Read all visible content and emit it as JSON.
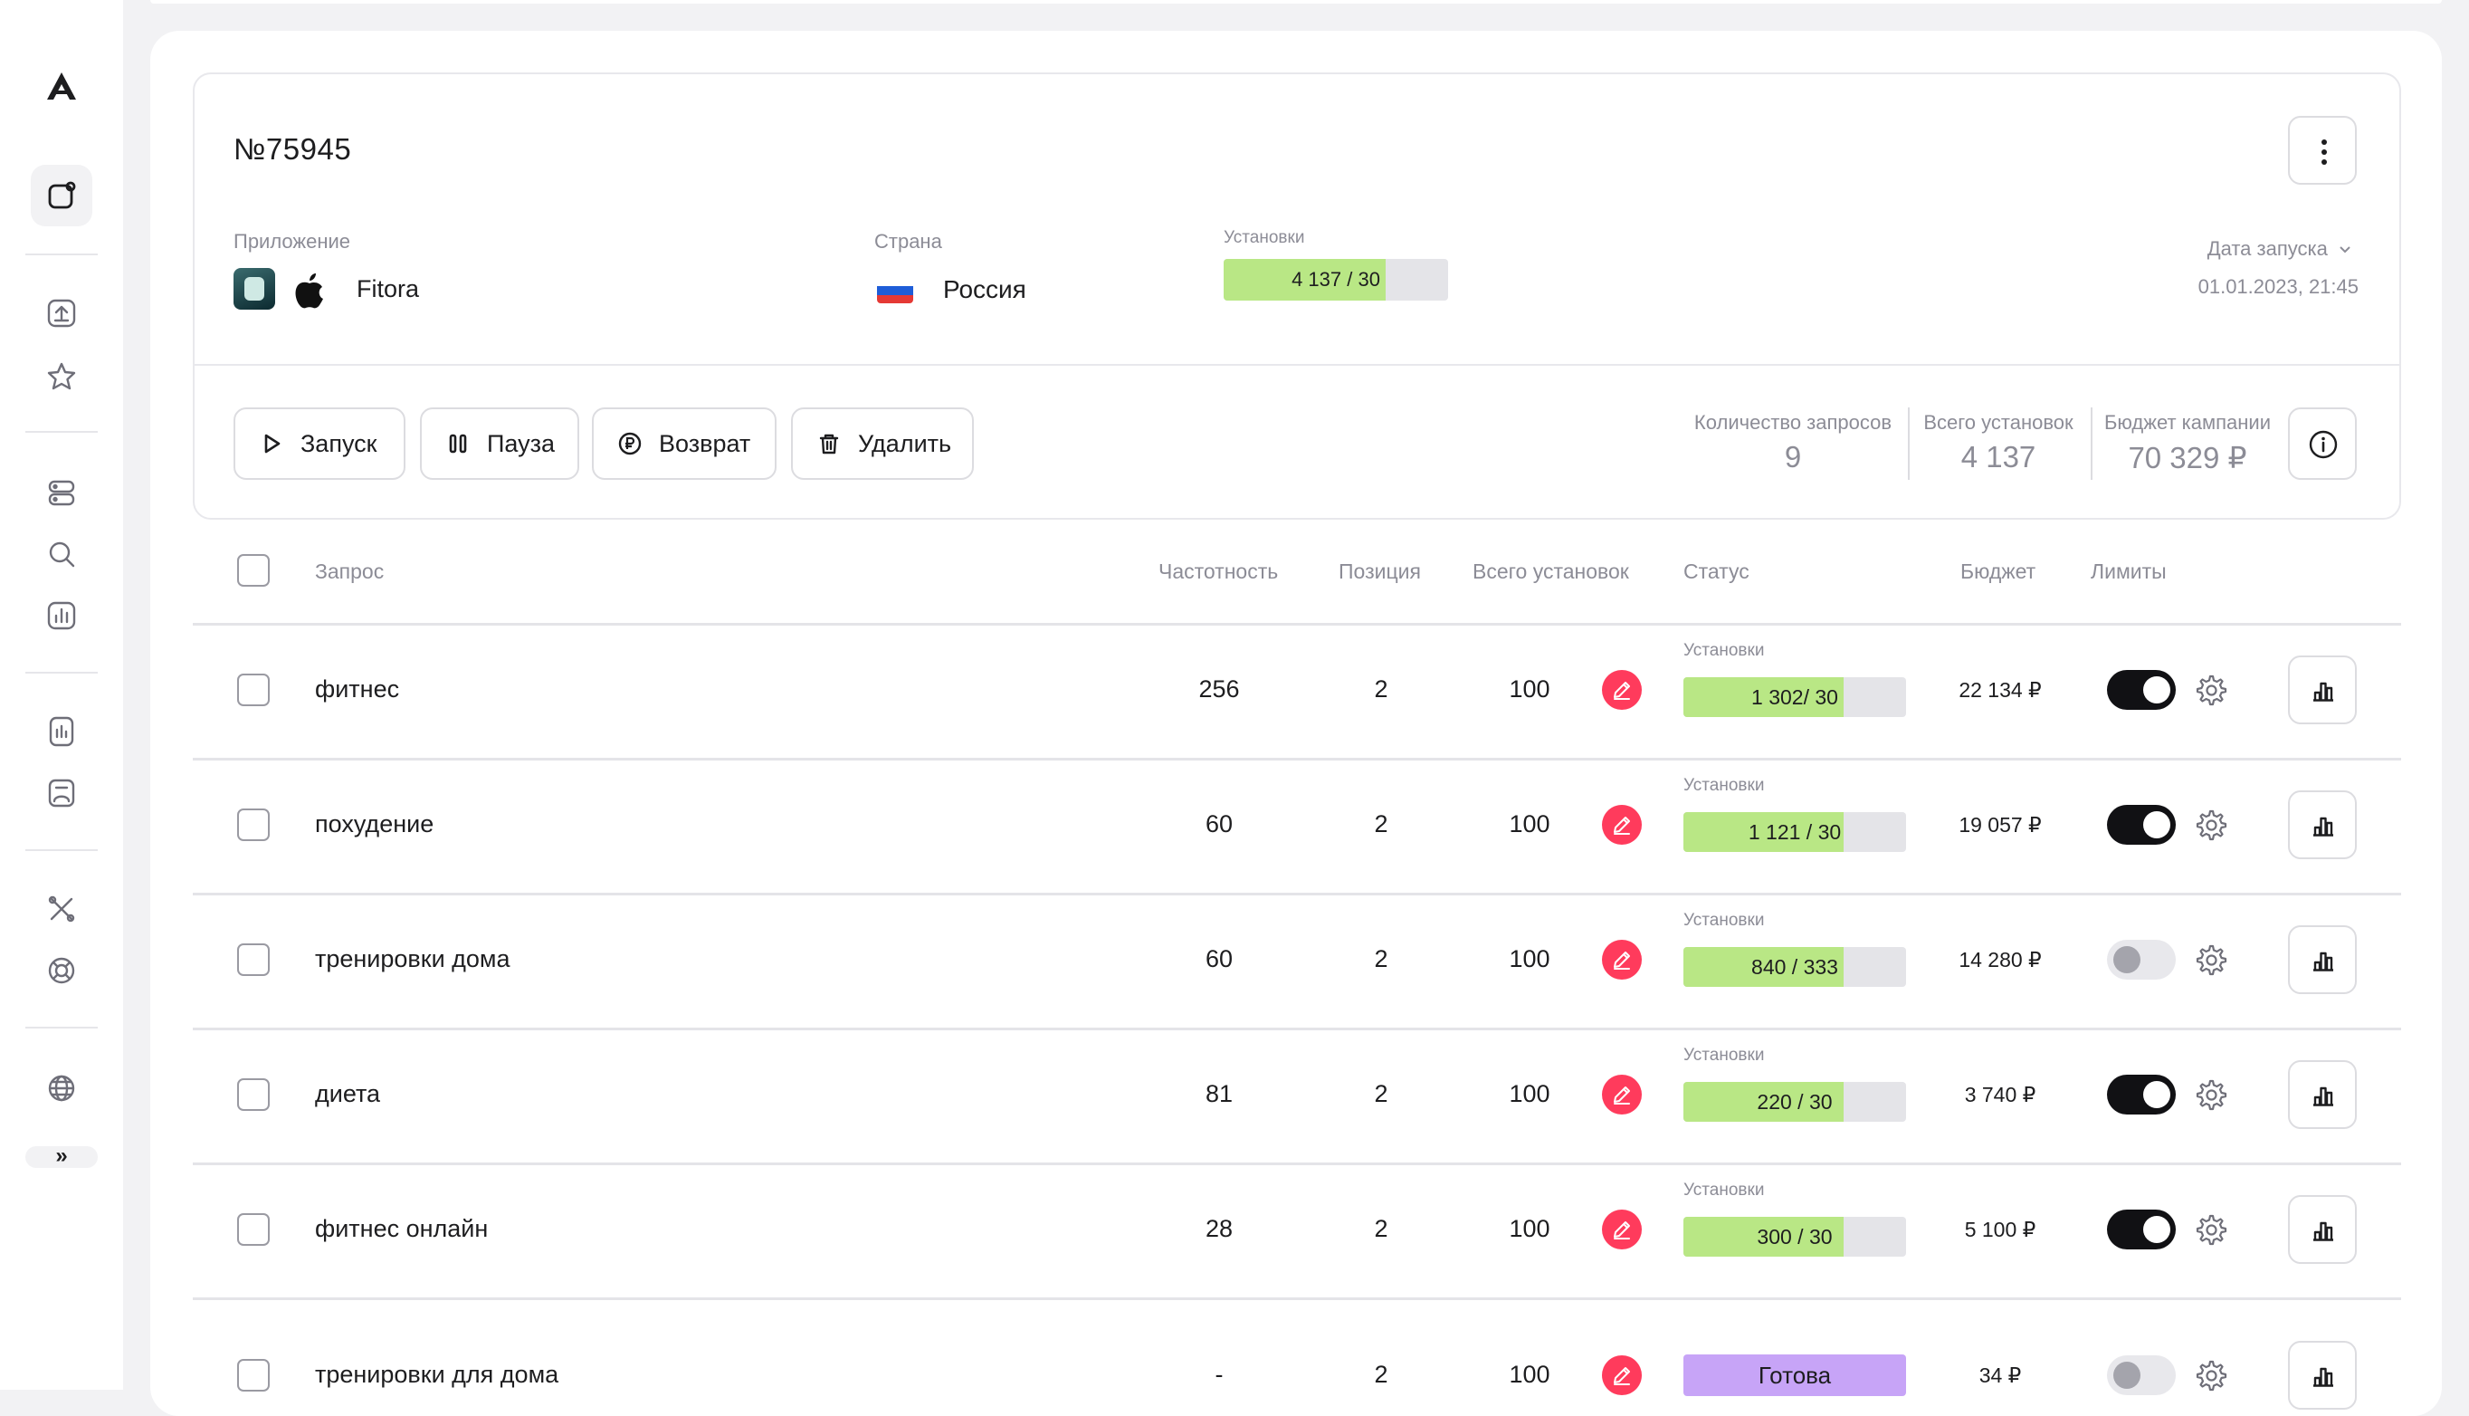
{
  "sidebar": {
    "expand_label": "»",
    "items": [
      {
        "icon": "app-window-icon",
        "active": true
      },
      {
        "icon": "upload-icon"
      },
      {
        "icon": "star-icon"
      },
      {
        "icon": "server-icon"
      },
      {
        "icon": "search-icon"
      },
      {
        "icon": "chart-icon"
      },
      {
        "icon": "phone-stats-icon"
      },
      {
        "icon": "store-icon"
      },
      {
        "icon": "tools-icon"
      },
      {
        "icon": "support-icon"
      },
      {
        "icon": "globe-icon"
      }
    ]
  },
  "campaign": {
    "title": "№75945",
    "app_label": "Приложение",
    "app_name": "Fitora",
    "country_label": "Страна",
    "country_name": "Россия",
    "installs_label": "Установки",
    "installs_value": "4 137 / 30",
    "installs_fill": 0.72,
    "date_label": "Дата запуска",
    "date_value": "01.01.2023, 21:45"
  },
  "actions": {
    "launch": "Запуск",
    "pause": "Пауза",
    "refund": "Возврат",
    "delete": "Удалить"
  },
  "stats": {
    "requests_label": "Количество запросов",
    "requests_value": "9",
    "installs_label": "Всего установок",
    "installs_value": "4 137",
    "budget_label": "Бюджет кампании",
    "budget_value": "70 329 ₽"
  },
  "table": {
    "headers": {
      "query": "Запрос",
      "frequency": "Частотность",
      "position": "Позиция",
      "installs": "Всего установок",
      "status": "Статус",
      "budget": "Бюджет",
      "limits": "Лимиты"
    },
    "rows": [
      {
        "query": "фитнес",
        "frequency": "256",
        "position": "2",
        "installs": "100",
        "status_label": "Установки",
        "status_value": "1 302/ 30",
        "fill": 0.72,
        "budget": "22 134 ₽",
        "limit_on": true
      },
      {
        "query": "похудение",
        "frequency": "60",
        "position": "2",
        "installs": "100",
        "status_label": "Установки",
        "status_value": "1 121 / 30",
        "fill": 0.72,
        "budget": "19 057 ₽",
        "limit_on": true
      },
      {
        "query": "тренировки дома",
        "frequency": "60",
        "position": "2",
        "installs": "100",
        "status_label": "Установки",
        "status_value": "840 / 333",
        "fill": 0.72,
        "budget": "14 280 ₽",
        "limit_on": false
      },
      {
        "query": "диета",
        "frequency": "81",
        "position": "2",
        "installs": "100",
        "status_label": "Установки",
        "status_value": "220 / 30",
        "fill": 0.72,
        "budget": "3 740 ₽",
        "limit_on": true
      },
      {
        "query": "фитнес онлайн",
        "frequency": "28",
        "position": "2",
        "installs": "100",
        "status_label": "Установки",
        "status_value": "300 / 30",
        "fill": 0.72,
        "budget": "5 100 ₽",
        "limit_on": true
      },
      {
        "query": "тренировки для дома",
        "frequency": "-",
        "position": "2",
        "installs": "100",
        "status_ready": "Готова",
        "budget": "34 ₽",
        "limit_on": false
      }
    ]
  },
  "colors": {
    "progress_fill": "#b9e785",
    "ready_badge": "#c7a4f7",
    "edit_button": "#ff3b5c"
  }
}
